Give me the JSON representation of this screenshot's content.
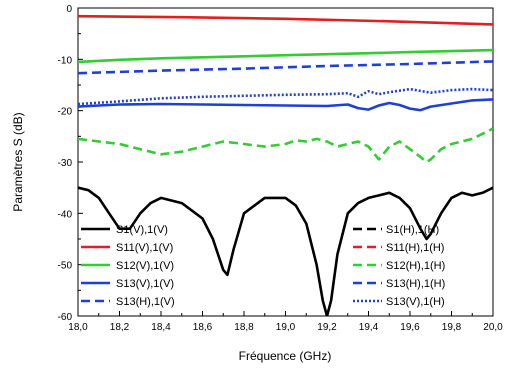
{
  "chart_data": {
    "type": "line",
    "title": "",
    "xlabel": "Fréquence (GHz)",
    "ylabel": "Paramètres S (dB)",
    "xlim": [
      18.0,
      20.0
    ],
    "ylim": [
      -60,
      0
    ],
    "x_ticks": [
      "18,0",
      "18,2",
      "18,4",
      "18,6",
      "18,8",
      "19,0",
      "19,2",
      "19,4",
      "19,6",
      "19,8",
      "20,0"
    ],
    "y_ticks": [
      "0",
      "-10",
      "-20",
      "-30",
      "-40",
      "-50",
      "-60"
    ],
    "grid": false,
    "legend_placement": "bottom",
    "series": [
      {
        "name": "S1(V),1(V)",
        "color": "#000000",
        "dash": "solid",
        "x": [
          18.0,
          18.05,
          18.1,
          18.15,
          18.2,
          18.25,
          18.3,
          18.35,
          18.4,
          18.5,
          18.6,
          18.65,
          18.7,
          18.72,
          18.75,
          18.8,
          18.9,
          19.0,
          19.05,
          19.1,
          19.15,
          19.18,
          19.2,
          19.22,
          19.25,
          19.3,
          19.35,
          19.4,
          19.45,
          19.5,
          19.55,
          19.6,
          19.65,
          19.68,
          19.7,
          19.75,
          19.8,
          19.85,
          19.9,
          19.95,
          20.0
        ],
        "y": [
          -35,
          -35.5,
          -37,
          -40,
          -43,
          -43,
          -40,
          -38,
          -37,
          -38,
          -41,
          -45,
          -51,
          -52,
          -47,
          -40,
          -37,
          -37,
          -38.5,
          -42,
          -50,
          -57,
          -60,
          -57,
          -48,
          -40,
          -38,
          -37,
          -36.5,
          -36,
          -37,
          -39,
          -43,
          -45,
          -44,
          -40,
          -37,
          -36,
          -36.5,
          -36,
          -35
        ]
      },
      {
        "name": "S11(V),1(V)",
        "color": "#e02020",
        "dash": "solid",
        "x": [
          18.0,
          18.5,
          19.0,
          19.5,
          20.0
        ],
        "y": [
          -1.6,
          -1.8,
          -2.1,
          -2.6,
          -3.2
        ]
      },
      {
        "name": "S12(V),1(V)",
        "color": "#33cc33",
        "dash": "solid",
        "x": [
          18.0,
          18.2,
          18.4,
          18.6,
          18.8,
          19.0,
          19.2,
          19.4,
          19.6,
          19.8,
          20.0
        ],
        "y": [
          -10.5,
          -10.1,
          -9.8,
          -9.6,
          -9.4,
          -9.2,
          -9.0,
          -8.8,
          -8.6,
          -8.4,
          -8.2
        ]
      },
      {
        "name": "S13(V),1(V)",
        "color": "#1f3fd6",
        "dash": "solid",
        "x": [
          18.0,
          18.1,
          18.2,
          18.4,
          18.6,
          18.8,
          19.0,
          19.2,
          19.3,
          19.35,
          19.4,
          19.45,
          19.5,
          19.55,
          19.6,
          19.65,
          19.7,
          19.8,
          19.9,
          20.0
        ],
        "y": [
          -19.2,
          -19.0,
          -18.8,
          -18.7,
          -18.8,
          -18.9,
          -19.0,
          -19.1,
          -18.8,
          -19.5,
          -19.8,
          -19.0,
          -18.5,
          -18.9,
          -19.6,
          -19.9,
          -19.2,
          -18.6,
          -18.0,
          -17.8
        ]
      },
      {
        "name": "S13(H),1(V)",
        "color": "#1f3fd6",
        "dash": "dashed",
        "x": [
          18.0,
          18.4,
          18.8,
          19.2,
          19.6,
          20.0
        ],
        "y": [
          -12.7,
          -12.2,
          -11.8,
          -11.3,
          -10.9,
          -10.4
        ]
      },
      {
        "name": "S1(H),1(H)",
        "color": "#000000",
        "dash": "dashed",
        "x": [],
        "y": []
      },
      {
        "name": "S11(H),1(H)",
        "color": "#e02020",
        "dash": "dashed",
        "x": [],
        "y": []
      },
      {
        "name": "S12(H),1(H)",
        "color": "#33cc33",
        "dash": "dashed",
        "x": [
          18.0,
          18.1,
          18.2,
          18.3,
          18.4,
          18.5,
          18.6,
          18.7,
          18.8,
          18.9,
          19.0,
          19.05,
          19.1,
          19.15,
          19.2,
          19.25,
          19.3,
          19.35,
          19.4,
          19.43,
          19.45,
          19.5,
          19.55,
          19.6,
          19.65,
          19.68,
          19.7,
          19.75,
          19.8,
          19.9,
          20.0
        ],
        "y": [
          -25.5,
          -26,
          -26.5,
          -27.5,
          -28.5,
          -28,
          -27,
          -26,
          -26.5,
          -27,
          -26.5,
          -25.8,
          -26,
          -25.5,
          -26,
          -27,
          -26.5,
          -26,
          -27,
          -28.5,
          -29.5,
          -27,
          -26,
          -27.5,
          -29,
          -30,
          -29.5,
          -27.5,
          -26.5,
          -25.5,
          -23.5
        ]
      },
      {
        "name": "S13(H),1(H)",
        "color": "#1f3fd6",
        "dash": "dashed",
        "x": [],
        "y": []
      },
      {
        "name": "S13(V),1(H)",
        "color": "#1f3fd6",
        "dash": "dotted",
        "x": [
          18.0,
          18.2,
          18.4,
          18.6,
          18.8,
          19.0,
          19.2,
          19.3,
          19.35,
          19.4,
          19.45,
          19.5,
          19.6,
          19.7,
          19.8,
          19.9,
          20.0
        ],
        "y": [
          -18.7,
          -18.2,
          -17.6,
          -17.3,
          -17.1,
          -16.9,
          -16.8,
          -16.6,
          -17.3,
          -16.2,
          -16.8,
          -16.4,
          -15.8,
          -16.5,
          -16.0,
          -15.8,
          -16.0
        ]
      }
    ],
    "legend_left": [
      "S1(V),1(V)",
      "S11(V),1(V)",
      "S12(V),1(V)",
      "S13(V),1(V)",
      "S13(H),1(V)"
    ],
    "legend_right": [
      "S1(H),1(H)",
      "S11(H),1(H)",
      "S12(H),1(H)",
      "S13(H),1(H)",
      "S13(V),1(H)"
    ]
  }
}
